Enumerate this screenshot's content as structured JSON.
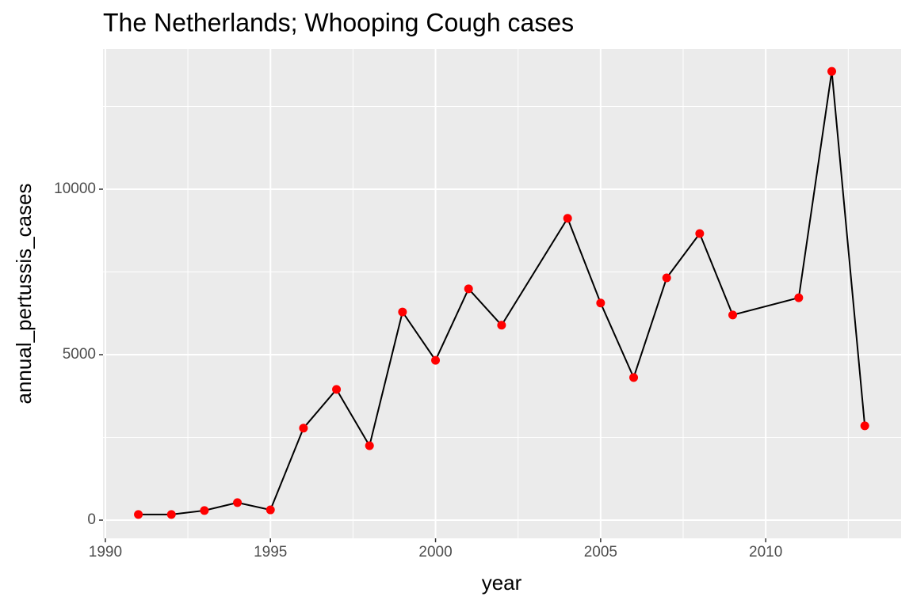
{
  "chart_data": {
    "type": "line",
    "title": "The Netherlands; Whooping Cough cases",
    "x_label": "year",
    "y_label": "annual_pertussis_cases",
    "x": [
      1991,
      1992,
      1993,
      1994,
      1995,
      1996,
      1997,
      1998,
      1999,
      2000,
      2001,
      2002,
      2004,
      2005,
      2006,
      2007,
      2008,
      2009,
      2011,
      2012,
      2013
    ],
    "values": [
      170,
      170,
      290,
      530,
      310,
      2780,
      3950,
      2250,
      6290,
      4830,
      6990,
      5890,
      9120,
      6560,
      4310,
      7320,
      8660,
      6200,
      6720,
      13560,
      2850
    ],
    "line_color": "#000000",
    "point_color": "#ff0000",
    "xlim": [
      1989.93,
      2014.1
    ],
    "xticks": [
      1990,
      1995,
      2000,
      2005,
      2010
    ],
    "ylim": [
      -550,
      14234
    ],
    "yticks": [
      0,
      5000,
      10000
    ],
    "grid": true
  }
}
